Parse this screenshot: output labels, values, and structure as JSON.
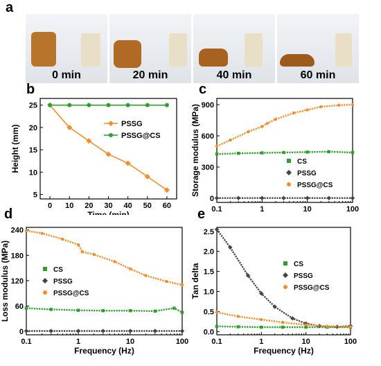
{
  "figure": {
    "panel_letters": [
      "a",
      "b",
      "c",
      "d",
      "e"
    ],
    "photo_labels": [
      "0 min",
      "20 min",
      "40 min",
      "60 min"
    ]
  },
  "chart_data": [
    {
      "panel": "b",
      "type": "line",
      "xlabel": "Time (min)",
      "ylabel": "Height (mm)",
      "xticks": [
        0,
        10,
        20,
        30,
        40,
        50,
        60
      ],
      "yticks": [
        5,
        10,
        15,
        20,
        25
      ],
      "xlim": [
        -5,
        65
      ],
      "ylim": [
        4,
        26.5
      ],
      "legend_position": "upper-right",
      "series": [
        {
          "name": "PSSG",
          "color": "#f28e2b",
          "marker": "diamond",
          "x": [
            0,
            10,
            20,
            30,
            40,
            50,
            60
          ],
          "y": [
            25,
            20,
            17,
            14,
            12,
            9,
            6
          ]
        },
        {
          "name": "PSSG@CS",
          "color": "#2e9e2e",
          "marker": "circle",
          "x": [
            0,
            10,
            20,
            30,
            40,
            50,
            60
          ],
          "y": [
            25,
            25,
            25,
            25,
            25,
            25,
            25
          ]
        }
      ]
    },
    {
      "panel": "c",
      "type": "line",
      "xscale": "log",
      "xlabel": "Frequency (Hz)",
      "ylabel": "Storage modulus (MPa)",
      "xticks": [
        0.1,
        1,
        10,
        100
      ],
      "xtick_labels": [
        "0.1",
        "1",
        "10",
        "100"
      ],
      "yticks": [
        0,
        300,
        600,
        900
      ],
      "xlim": [
        0.1,
        100
      ],
      "ylim": [
        -40,
        960
      ],
      "legend_position": "lower-right",
      "series": [
        {
          "name": "CS",
          "color": "#2e9e2e",
          "marker": "square",
          "x": [
            0.1,
            0.3,
            1,
            3,
            10,
            30,
            100
          ],
          "y": [
            425,
            432,
            436,
            440,
            444,
            448,
            440
          ]
        },
        {
          "name": "PSSG",
          "color": "#444444",
          "marker": "diamond",
          "x": [
            0.1,
            0.3,
            1,
            3,
            10,
            30,
            100
          ],
          "y": [
            2,
            2,
            2,
            2,
            2,
            2,
            2
          ]
        },
        {
          "name": "PSSG@CS",
          "color": "#f28e2b",
          "marker": "circle",
          "x": [
            0.1,
            0.2,
            0.5,
            1,
            1.3,
            2,
            5,
            10,
            20,
            50,
            100
          ],
          "y": [
            500,
            560,
            640,
            690,
            720,
            760,
            820,
            850,
            880,
            895,
            900
          ]
        }
      ]
    },
    {
      "panel": "d",
      "type": "line",
      "xscale": "log",
      "xlabel": "Frequency (Hz)",
      "ylabel": "Loss modulus (MPa)",
      "xticks": [
        0.1,
        1,
        10,
        100
      ],
      "xtick_labels": [
        "0.1",
        "1",
        "10",
        "100"
      ],
      "yticks": [
        0,
        60,
        120,
        180,
        240
      ],
      "xlim": [
        0.1,
        100
      ],
      "ylim": [
        -8,
        246
      ],
      "legend_position": "center-left",
      "series": [
        {
          "name": "CS",
          "color": "#2e9e2e",
          "marker": "square",
          "x": [
            0.1,
            0.3,
            1,
            3,
            10,
            30,
            70,
            100
          ],
          "y": [
            55,
            52,
            50,
            49,
            49,
            48,
            55,
            45
          ]
        },
        {
          "name": "PSSG",
          "color": "#444444",
          "marker": "diamond",
          "x": [
            0.1,
            0.3,
            1,
            3,
            10,
            30,
            100
          ],
          "y": [
            1,
            1,
            1,
            1,
            1,
            1,
            1
          ]
        },
        {
          "name": "PSSG@CS",
          "color": "#f28e2b",
          "marker": "circle",
          "x": [
            0.1,
            0.2,
            0.5,
            1,
            1.2,
            2,
            5,
            10,
            20,
            50,
            100
          ],
          "y": [
            238,
            232,
            218,
            205,
            188,
            182,
            165,
            148,
            132,
            118,
            110
          ]
        }
      ]
    },
    {
      "panel": "e",
      "type": "line",
      "xscale": "log",
      "xlabel": "Frequency (Hz)",
      "ylabel": "Tan delta",
      "xticks": [
        0.1,
        1,
        10,
        100
      ],
      "xtick_labels": [
        "0.1",
        "1",
        "10",
        "100"
      ],
      "yticks": [
        0.0,
        0.5,
        1.0,
        1.5,
        2.0,
        2.5
      ],
      "ytick_labels": [
        "0.0",
        "0.5",
        "1.0",
        "1.5",
        "2.0",
        "2.5"
      ],
      "xlim": [
        0.1,
        100
      ],
      "ylim": [
        -0.08,
        2.6
      ],
      "legend_position": "upper-right",
      "series": [
        {
          "name": "CS",
          "color": "#2e9e2e",
          "marker": "square",
          "x": [
            0.1,
            0.3,
            1,
            3,
            10,
            30,
            100
          ],
          "y": [
            0.13,
            0.12,
            0.11,
            0.11,
            0.11,
            0.11,
            0.11
          ]
        },
        {
          "name": "PSSG",
          "color": "#444444",
          "marker": "diamond",
          "x": [
            0.1,
            0.2,
            0.5,
            1,
            2,
            5,
            10,
            20,
            50,
            100
          ],
          "y": [
            2.55,
            2.1,
            1.4,
            0.95,
            0.62,
            0.33,
            0.2,
            0.14,
            0.12,
            0.14
          ]
        },
        {
          "name": "PSSG@CS",
          "color": "#f28e2b",
          "marker": "circle",
          "x": [
            0.1,
            0.3,
            1,
            3,
            10,
            30,
            100
          ],
          "y": [
            0.48,
            0.38,
            0.3,
            0.23,
            0.17,
            0.13,
            0.12
          ]
        }
      ]
    }
  ]
}
